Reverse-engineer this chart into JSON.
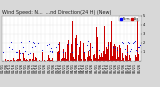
{
  "title": "Wind Speed: N...  ...nd Direction(24 H) (New)",
  "bg_color": "#d8d8d8",
  "plot_bg": "#ffffff",
  "bar_color": "#cc0000",
  "dot_color": "#0000cc",
  "ylim": [
    0,
    5
  ],
  "ytick_vals": [
    1,
    2,
    3,
    4,
    5
  ],
  "n_points": 144,
  "grid_color": "#bbbbbb",
  "title_fontsize": 3.5,
  "tick_fontsize": 2.5,
  "legend_colors": [
    "#0000ff",
    "#cc0000"
  ],
  "legend_labels": [
    "Norm",
    "Avg"
  ]
}
